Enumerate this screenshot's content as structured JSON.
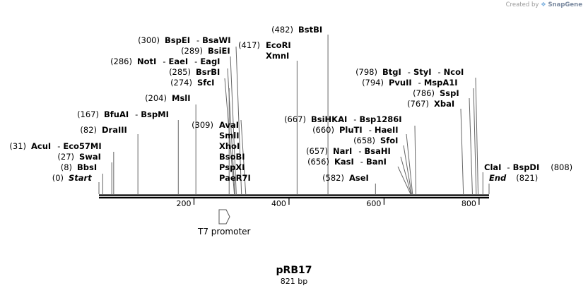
{
  "credit": {
    "prefix": "Created by",
    "brand": "SnapGene"
  },
  "sequence": {
    "name": "pRB17",
    "length_label": "821 bp",
    "length": 821
  },
  "axis": {
    "ticks": [
      200,
      400,
      600,
      800
    ]
  },
  "features": [
    {
      "name": "T7 promoter",
      "start": 292,
      "end": 310,
      "direction": "forward"
    }
  ],
  "sites": [
    {
      "position": 0,
      "position_label": "(0)",
      "names": [
        "Start"
      ],
      "italic": true
    },
    {
      "position": 8,
      "position_label": "(8)",
      "names": [
        "BbsI"
      ]
    },
    {
      "position": 27,
      "position_label": "(27)",
      "names": [
        "SwaI"
      ]
    },
    {
      "position": 31,
      "position_label": "(31)",
      "names": [
        "AcuI",
        "Eco57MI"
      ]
    },
    {
      "position": 82,
      "position_label": "(82)",
      "names": [
        "DraIII"
      ]
    },
    {
      "position": 167,
      "position_label": "(167)",
      "names": [
        "BfuAI",
        "BspMI"
      ]
    },
    {
      "position": 204,
      "position_label": "(204)",
      "names": [
        "MslI"
      ]
    },
    {
      "position": 274,
      "position_label": "(274)",
      "names": [
        "SfcI"
      ]
    },
    {
      "position": 285,
      "position_label": "(285)",
      "names": [
        "BsrBI"
      ]
    },
    {
      "position": 286,
      "position_label": "(286)",
      "names": [
        "NotI",
        "EaeI",
        "EagI"
      ]
    },
    {
      "position": 289,
      "position_label": "(289)",
      "names": [
        "BsiEI"
      ]
    },
    {
      "position": 300,
      "position_label": "(300)",
      "names": [
        "BspEI",
        "BsaWI"
      ]
    },
    {
      "position": 309,
      "position_label": "(309)",
      "names": [
        "AvaI",
        "SmlI",
        "XhoI",
        "BsoBI",
        "PspXI",
        "PaeR7I"
      ]
    },
    {
      "position": 417,
      "position_label": "(417)",
      "names": [
        "EcoRI",
        "XmnI"
      ]
    },
    {
      "position": 482,
      "position_label": "(482)",
      "names": [
        "BstBI"
      ]
    },
    {
      "position": 582,
      "position_label": "(582)",
      "names": [
        "AseI"
      ]
    },
    {
      "position": 656,
      "position_label": "(656)",
      "names": [
        "KasI",
        "BanI"
      ]
    },
    {
      "position": 657,
      "position_label": "(657)",
      "names": [
        "NarI",
        "BsaHI"
      ]
    },
    {
      "position": 658,
      "position_label": "(658)",
      "names": [
        "SfoI"
      ]
    },
    {
      "position": 660,
      "position_label": "(660)",
      "names": [
        "PluTI",
        "HaeII"
      ]
    },
    {
      "position": 667,
      "position_label": "(667)",
      "names": [
        "BsiHKAI",
        "Bsp1286I"
      ]
    },
    {
      "position": 767,
      "position_label": "(767)",
      "names": [
        "XbaI"
      ]
    },
    {
      "position": 786,
      "position_label": "(786)",
      "names": [
        "SspI"
      ]
    },
    {
      "position": 794,
      "position_label": "(794)",
      "names": [
        "PvuII",
        "MspA1I"
      ]
    },
    {
      "position": 798,
      "position_label": "(798)",
      "names": [
        "BtgI",
        "StyI",
        "NcoI"
      ]
    },
    {
      "position": 808,
      "position_label": "(808)",
      "names": [
        "ClaI",
        "BspDI"
      ]
    },
    {
      "position": 821,
      "position_label": "(821)",
      "names": [
        "End"
      ],
      "italic": true
    }
  ]
}
